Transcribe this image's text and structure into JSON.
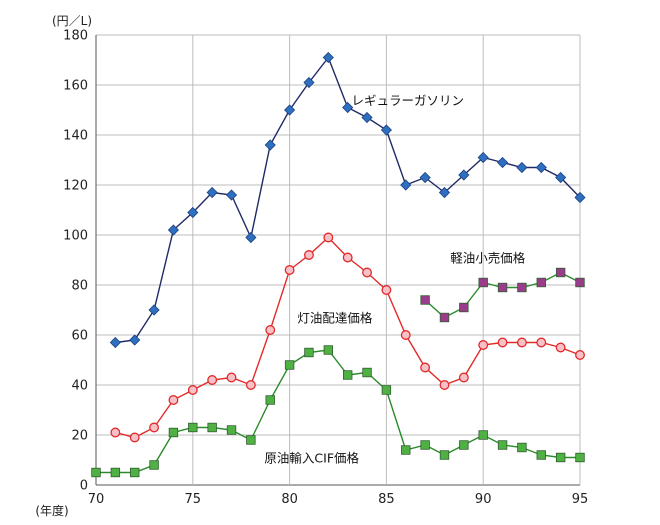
{
  "chart_data": {
    "type": "line",
    "unit_label": "(円／L)",
    "xunit_label": "(年度)",
    "xlabel": "",
    "ylabel": "",
    "xlim": [
      70,
      95
    ],
    "ylim": [
      0,
      180
    ],
    "grid": true,
    "x_ticks": [
      {
        "value": 70,
        "label": "70"
      },
      {
        "value": 75,
        "label": "75"
      },
      {
        "value": 80,
        "label": "80"
      },
      {
        "value": 85,
        "label": "85"
      },
      {
        "value": 90,
        "label": "90"
      },
      {
        "value": 95,
        "label": "95"
      }
    ],
    "y_ticks": [
      {
        "value": 0,
        "label": "0"
      },
      {
        "value": 20,
        "label": "20"
      },
      {
        "value": 40,
        "label": "40"
      },
      {
        "value": 60,
        "label": "60"
      },
      {
        "value": 80,
        "label": "80"
      },
      {
        "value": 100,
        "label": "100"
      },
      {
        "value": 120,
        "label": "120"
      },
      {
        "value": 140,
        "label": "140"
      },
      {
        "value": 160,
        "label": "160"
      },
      {
        "value": 180,
        "label": "180"
      }
    ],
    "series": [
      {
        "name": "レギュラーガソリン",
        "color": "#1f2a66",
        "marker_color": "#2e6fc0",
        "marker": "diamond",
        "label_at": [
          83.2,
          152
        ],
        "points": [
          [
            71,
            57
          ],
          [
            72,
            58
          ],
          [
            73,
            70
          ],
          [
            74,
            102
          ],
          [
            75,
            109
          ],
          [
            76,
            117
          ],
          [
            77,
            116
          ],
          [
            78,
            99
          ],
          [
            79,
            136
          ],
          [
            80,
            150
          ],
          [
            81,
            161
          ],
          [
            82,
            171
          ],
          [
            83,
            151
          ],
          [
            84,
            147
          ],
          [
            85,
            142
          ],
          [
            86,
            120
          ],
          [
            87,
            123
          ],
          [
            88,
            117
          ],
          [
            89,
            124
          ],
          [
            90,
            131
          ],
          [
            91,
            129
          ],
          [
            92,
            127
          ],
          [
            93,
            127
          ],
          [
            94,
            123
          ],
          [
            95,
            115
          ]
        ]
      },
      {
        "name": "灯油配達価格",
        "color": "#e32a2a",
        "marker_color": "#f6c1c8",
        "marker": "circle",
        "label_at": [
          80.4,
          65
        ],
        "points": [
          [
            71,
            21
          ],
          [
            72,
            19
          ],
          [
            73,
            23
          ],
          [
            74,
            34
          ],
          [
            75,
            38
          ],
          [
            76,
            42
          ],
          [
            77,
            43
          ],
          [
            78,
            40
          ],
          [
            79,
            62
          ],
          [
            80,
            86
          ],
          [
            81,
            92
          ],
          [
            82,
            99
          ],
          [
            83,
            91
          ],
          [
            84,
            85
          ],
          [
            85,
            78
          ],
          [
            86,
            60
          ],
          [
            87,
            47
          ],
          [
            88,
            40
          ],
          [
            89,
            43
          ],
          [
            90,
            56
          ],
          [
            91,
            57
          ],
          [
            92,
            57
          ],
          [
            93,
            57
          ],
          [
            94,
            55
          ],
          [
            95,
            52
          ]
        ]
      },
      {
        "name": "軽油小売価格",
        "color": "#2b8a2b",
        "marker_color": "#9a3b8c",
        "marker": "square",
        "label_at": [
          88.3,
          89
        ],
        "points": [
          [
            87,
            74
          ],
          [
            88,
            67
          ],
          [
            89,
            71
          ],
          [
            90,
            81
          ],
          [
            91,
            79
          ],
          [
            92,
            79
          ],
          [
            93,
            81
          ],
          [
            94,
            85
          ],
          [
            95,
            81
          ]
        ]
      },
      {
        "name": "原油輸入CIF価格",
        "color": "#2b8a2b",
        "marker_color": "#4fb043",
        "marker": "square",
        "label_at": [
          78.7,
          9
        ],
        "points": [
          [
            70,
            5
          ],
          [
            71,
            5
          ],
          [
            72,
            5
          ],
          [
            73,
            8
          ],
          [
            74,
            21
          ],
          [
            75,
            23
          ],
          [
            76,
            23
          ],
          [
            77,
            22
          ],
          [
            78,
            18
          ],
          [
            79,
            34
          ],
          [
            80,
            48
          ],
          [
            81,
            53
          ],
          [
            82,
            54
          ],
          [
            83,
            44
          ],
          [
            84,
            45
          ],
          [
            85,
            38
          ],
          [
            86,
            14
          ],
          [
            87,
            16
          ],
          [
            88,
            12
          ],
          [
            89,
            16
          ],
          [
            90,
            20
          ],
          [
            91,
            16
          ],
          [
            92,
            15
          ],
          [
            93,
            12
          ],
          [
            94,
            11
          ],
          [
            95,
            11
          ]
        ]
      }
    ]
  }
}
